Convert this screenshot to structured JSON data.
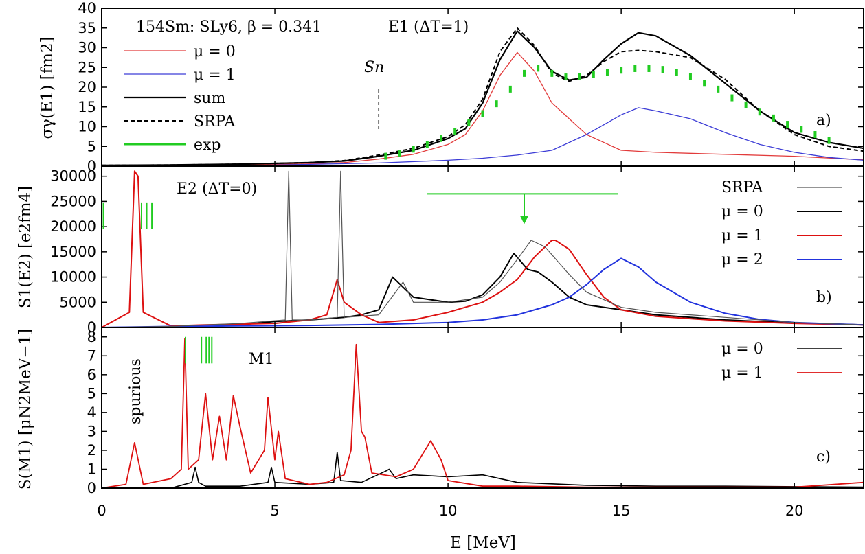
{
  "xaxis": {
    "label": "E [MeV]",
    "ticks": [
      "0",
      "5",
      "10",
      "15",
      "20"
    ],
    "tick_values": [
      0,
      5,
      10,
      15,
      20
    ],
    "xlim": [
      0,
      22
    ]
  },
  "panels": {
    "a": {
      "tag": "a)",
      "ylabel": "σγ(E1) [fm2]",
      "ylim": [
        0,
        40
      ],
      "yticks": [
        "0",
        "5",
        "10",
        "15",
        "20",
        "25",
        "30",
        "35",
        "40"
      ],
      "ytick_values": [
        0,
        5,
        10,
        15,
        20,
        25,
        30,
        35,
        40
      ],
      "header_left": "154Sm: SLy6, β = 0.341",
      "header_right": "E1 (ΔT=1)",
      "sn_label": "Sn",
      "sn_energy": 8.0,
      "legend": [
        "μ = 0",
        "μ = 1",
        "sum",
        "SRPA",
        "exp"
      ]
    },
    "b": {
      "tag": "b)",
      "ylabel": "S1(E2) [e2fm4]",
      "ylim": [
        0,
        32000
      ],
      "yticks": [
        "0",
        "5000",
        "10000",
        "15000",
        "20000",
        "25000",
        "30000"
      ],
      "ytick_values": [
        0,
        5000,
        10000,
        15000,
        20000,
        25000,
        30000
      ],
      "title": "E2 (ΔT=0)",
      "legend": [
        "SRPA",
        "μ = 0",
        "μ = 1",
        "μ = 2"
      ]
    },
    "c": {
      "tag": "c)",
      "ylabel": "S(M1) [μN2MeV−1]",
      "ylim": [
        0,
        8.5
      ],
      "yticks": [
        "0",
        "1",
        "2",
        "3",
        "4",
        "5",
        "6",
        "7",
        "8"
      ],
      "ytick_values": [
        0,
        1,
        2,
        3,
        4,
        5,
        6,
        7,
        8
      ],
      "title": "M1",
      "spurious_label": "spurious",
      "legend": [
        "μ = 0",
        "μ = 1"
      ]
    }
  },
  "colors": {
    "mu0_E1": "#e23b3b",
    "mu1_E1": "#3c3cd6",
    "sum": "#000000",
    "exp": "#22cc22",
    "mu0": "#000000",
    "mu1": "#dd1111",
    "mu2": "#2233dd",
    "srpa_gray": "#555555"
  },
  "chart_data": [
    {
      "type": "line",
      "panel": "a",
      "xlabel": "E [MeV]",
      "ylabel": "σγ(E1) [fm2]",
      "ylim": [
        0,
        40
      ],
      "series": [
        {
          "name": "μ = 0",
          "x": [
            0,
            2,
            4,
            6,
            7,
            8,
            9,
            10,
            10.5,
            11,
            11.5,
            12,
            12.5,
            13,
            14,
            15,
            16,
            18,
            20,
            22
          ],
          "y": [
            0.1,
            0.2,
            0.3,
            0.6,
            0.9,
            1.8,
            3,
            5.5,
            8,
            14,
            23,
            28.8,
            24,
            16,
            8,
            4,
            3.5,
            3,
            2.5,
            1.6
          ]
        },
        {
          "name": "μ = 1",
          "x": [
            0,
            4,
            8,
            10,
            11,
            12,
            13,
            14,
            15,
            15.5,
            16,
            17,
            18,
            19,
            20,
            21,
            22
          ],
          "y": [
            0,
            0.1,
            0.8,
            1.5,
            2,
            2.8,
            4,
            8,
            13,
            14.8,
            14,
            12,
            8.5,
            5.5,
            3.5,
            2.2,
            1.5
          ]
        },
        {
          "name": "sum",
          "x": [
            0,
            2,
            4,
            6,
            7,
            8,
            9,
            10,
            10.5,
            11,
            11.5,
            12,
            12.5,
            13,
            13.5,
            14,
            14.5,
            15,
            15.5,
            16,
            17,
            18,
            19,
            20,
            21,
            22
          ],
          "y": [
            0.2,
            0.3,
            0.5,
            0.9,
            1.3,
            2.5,
            4,
            7,
            9.5,
            16,
            27,
            34.2,
            30,
            24,
            21.8,
            22.5,
            27,
            31,
            33.8,
            33,
            28,
            21,
            14,
            8.5,
            6,
            4.5
          ]
        },
        {
          "name": "SRPA",
          "x": [
            0,
            2,
            4,
            6,
            7,
            8,
            9,
            10,
            10.5,
            11,
            11.5,
            12,
            12.5,
            13,
            13.5,
            14,
            14.5,
            15,
            15.5,
            16,
            17,
            18,
            19,
            20,
            21,
            22
          ],
          "y": [
            0.2,
            0.3,
            0.5,
            0.9,
            1.4,
            2.8,
            4.5,
            7.5,
            10.5,
            17,
            29,
            35,
            30.5,
            23.5,
            21.5,
            23,
            26.5,
            29,
            29.3,
            29,
            27.5,
            22,
            14,
            8,
            5,
            3.8
          ]
        },
        {
          "name": "exp",
          "x": [
            8.2,
            8.6,
            9,
            9.4,
            9.8,
            10.2,
            10.6,
            11,
            11.4,
            11.8,
            12.2,
            12.6,
            13,
            13.4,
            13.8,
            14.2,
            14.6,
            15,
            15.4,
            15.8,
            16.2,
            16.6,
            17,
            17.4,
            17.8,
            18.2,
            18.6,
            19,
            19.4,
            19.8,
            20.2,
            20.6,
            21
          ],
          "y": [
            2.5,
            3.3,
            4.3,
            5.5,
            7,
            8.8,
            11,
            13.3,
            15.8,
            19.5,
            23.5,
            24.8,
            23.5,
            22.6,
            22.7,
            23.2,
            23.8,
            24.3,
            24.7,
            24.7,
            24.5,
            23.8,
            22.7,
            21,
            19.5,
            17.3,
            15.5,
            13.7,
            12.2,
            10.6,
            9.3,
            8,
            6.5
          ]
        }
      ]
    },
    {
      "type": "line",
      "panel": "b",
      "xlabel": "E [MeV]",
      "ylabel": "S1(E2) [e2fm4]",
      "ylim": [
        0,
        32000
      ],
      "series": [
        {
          "name": "μ = 0",
          "x": [
            0,
            3,
            4,
            5,
            6,
            7,
            7.5,
            8,
            8.4,
            9,
            9.5,
            10,
            10.5,
            11,
            11.5,
            11.9,
            12.3,
            12.6,
            13,
            13.5,
            14,
            15,
            16,
            18,
            20,
            22
          ],
          "y": [
            0,
            100,
            500,
            1200,
            1500,
            2000,
            2500,
            3500,
            10000,
            6000,
            5500,
            5000,
            5200,
            6500,
            10000,
            14700,
            11500,
            11000,
            9000,
            6000,
            4500,
            3500,
            2500,
            1500,
            900,
            500
          ]
        },
        {
          "name": "μ = 1",
          "x": [
            0,
            0.8,
            0.95,
            1.05,
            1.2,
            2,
            3,
            5,
            6,
            6.5,
            6.8,
            7,
            7.5,
            8,
            9,
            10,
            10.5,
            11,
            11.5,
            12,
            12.5,
            13,
            13.1,
            13.5,
            14,
            14.5,
            15,
            16,
            18,
            20,
            22
          ],
          "y": [
            0,
            3000,
            31000,
            30000,
            3000,
            300,
            500,
            800,
            1500,
            2500,
            9500,
            5000,
            2500,
            1000,
            1500,
            3000,
            4000,
            5000,
            7000,
            9500,
            14000,
            17300,
            17300,
            15500,
            10500,
            6000,
            3500,
            2200,
            1300,
            800,
            500
          ]
        },
        {
          "name": "μ = 2",
          "x": [
            0,
            2,
            4,
            6,
            8,
            10,
            11,
            12,
            13,
            13.5,
            14,
            14.5,
            15,
            15.5,
            16,
            17,
            18,
            19,
            20,
            22
          ],
          "y": [
            0,
            200,
            300,
            400,
            600,
            1000,
            1500,
            2500,
            4500,
            6000,
            8500,
            11500,
            13700,
            12000,
            9000,
            5000,
            2800,
            1600,
            1000,
            500
          ]
        },
        {
          "name": "SRPA",
          "x": [
            0,
            2,
            4,
            5.3,
            5.4,
            5.5,
            6,
            6.8,
            6.9,
            7,
            8,
            8.7,
            9,
            10,
            11,
            11.5,
            12,
            12.4,
            12.8,
            13.5,
            14,
            15,
            16,
            18,
            20,
            22
          ],
          "y": [
            0,
            200,
            800,
            1500,
            31000,
            1500,
            1500,
            2000,
            31000,
            2000,
            2500,
            9000,
            5000,
            5000,
            6000,
            9000,
            13500,
            17300,
            16000,
            10500,
            7000,
            4000,
            3000,
            2000,
            1000,
            500
          ]
        }
      ]
    },
    {
      "type": "line",
      "panel": "c",
      "xlabel": "E [MeV]",
      "ylabel": "S(M1) [μN2MeV−1]",
      "ylim": [
        0,
        8.5
      ],
      "series": [
        {
          "name": "μ = 0",
          "x": [
            0,
            2,
            2.6,
            2.7,
            2.8,
            3,
            4,
            4.8,
            4.9,
            5,
            6,
            6.7,
            6.8,
            6.9,
            7.5,
            8.2,
            8.3,
            8.5,
            9,
            10,
            11,
            11.5,
            12,
            14,
            16,
            18,
            22
          ],
          "y": [
            0,
            0,
            0.3,
            1.1,
            0.3,
            0.1,
            0.1,
            0.3,
            1.1,
            0.3,
            0.2,
            0.3,
            1.9,
            0.4,
            0.3,
            0.9,
            1,
            0.5,
            0.7,
            0.6,
            0.7,
            0.5,
            0.3,
            0.15,
            0.1,
            0.1,
            0.05
          ]
        },
        {
          "name": "μ = 1",
          "x": [
            0,
            0.7,
            0.95,
            1.2,
            2,
            2.3,
            2.4,
            2.5,
            2.8,
            3,
            3.2,
            3.4,
            3.6,
            3.8,
            4,
            4.3,
            4.7,
            4.8,
            5,
            5.1,
            5.3,
            6,
            6.5,
            7,
            7.2,
            7.35,
            7.5,
            7.6,
            7.8,
            8.5,
            9,
            9.5,
            9.8,
            10,
            11,
            12,
            14,
            16,
            18,
            20,
            22
          ],
          "y": [
            0,
            0.2,
            2.4,
            0.2,
            0.5,
            1,
            7.9,
            1,
            1.5,
            5,
            1.5,
            3.8,
            1.5,
            4.9,
            3.2,
            0.8,
            2,
            4.8,
            1.5,
            3,
            0.5,
            0.2,
            0.3,
            0.7,
            2,
            7.6,
            3,
            2.7,
            0.8,
            0.6,
            1,
            2.5,
            1.5,
            0.4,
            0.1,
            0.1,
            0.05,
            0.05,
            0.05,
            0.05,
            0.3
          ]
        }
      ]
    }
  ]
}
